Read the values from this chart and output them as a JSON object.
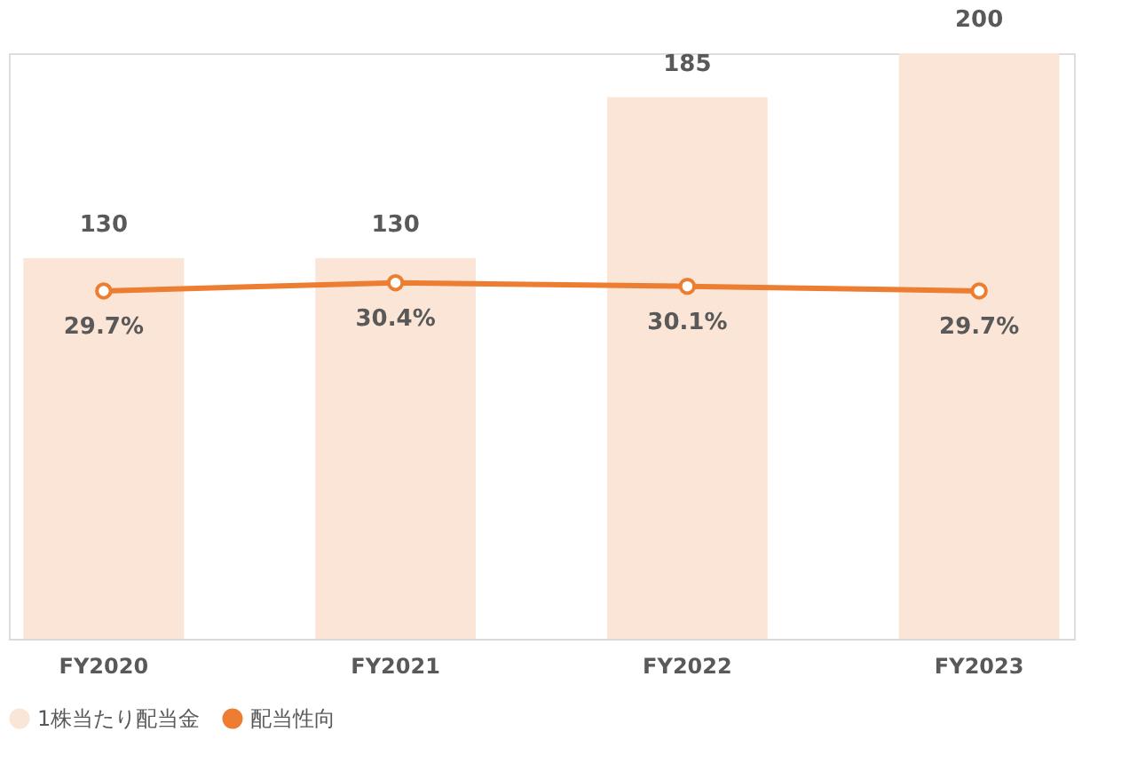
{
  "chart_data": {
    "type": "bar",
    "categories": [
      "FY2020",
      "FY2021",
      "FY2022",
      "FY2023"
    ],
    "series": [
      {
        "name": "1株当たり配当金",
        "color": "#fbe5d6",
        "values": [
          130,
          130,
          185,
          200
        ]
      },
      {
        "name": "配当性向",
        "type": "line",
        "axis": "y2",
        "color": "#ed7d31",
        "marker": "circle",
        "line_style": "solid",
        "values": [
          29.7,
          30.4,
          30.1,
          29.7
        ],
        "value_labels": [
          "29.7%",
          "30.4%",
          "30.1%",
          "29.7%"
        ]
      }
    ],
    "ylim": [
      0,
      200
    ],
    "y2lim": [
      0,
      50
    ],
    "data_labels": true,
    "grid": false,
    "legend": "bottom",
    "tick_labels": "x"
  }
}
